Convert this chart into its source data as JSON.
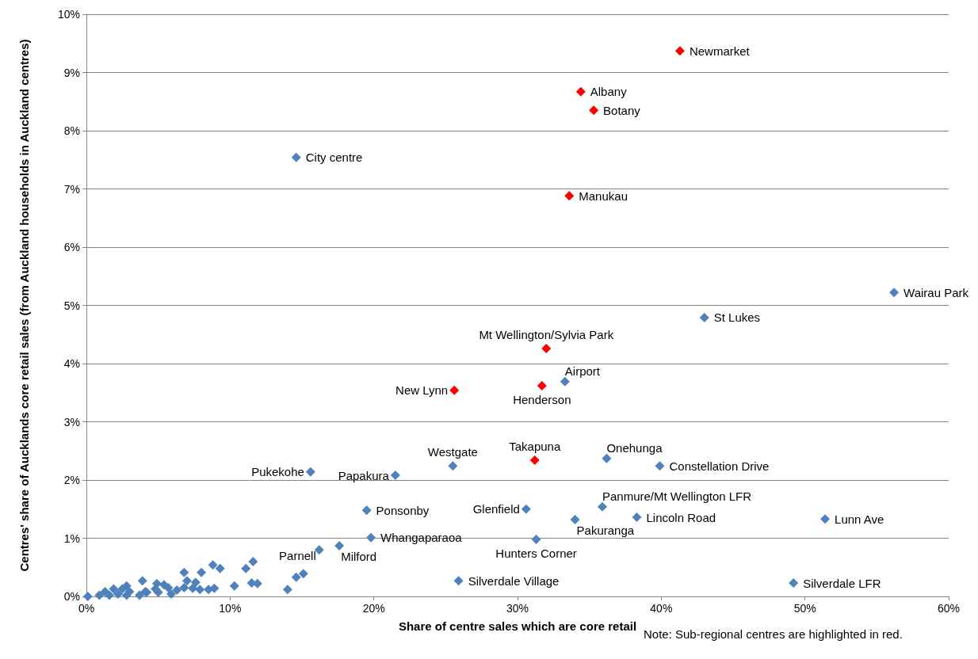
{
  "chart_data": {
    "type": "scatter",
    "xlabel": "Share of centre sales which are core retail",
    "ylabel": "Centres' share of Aucklands core retail sales (from Auckland households in Auckland centres)",
    "marker": "diamond",
    "grid": "y",
    "xlim": [
      0,
      60
    ],
    "xticks": [
      {
        "value": 0,
        "label": "0%"
      },
      {
        "value": 10,
        "label": "10%"
      },
      {
        "value": 20,
        "label": "20%"
      },
      {
        "value": 30,
        "label": "30%"
      },
      {
        "value": 40,
        "label": "40%"
      },
      {
        "value": 50,
        "label": "50%"
      },
      {
        "value": 60,
        "label": "60%"
      }
    ],
    "ylim": [
      0,
      10
    ],
    "yticks": [
      {
        "value": 0,
        "label": "0%"
      },
      {
        "value": 1,
        "label": "1%"
      },
      {
        "value": 2,
        "label": "2%"
      },
      {
        "value": 3,
        "label": "3%"
      },
      {
        "value": 4,
        "label": "4%"
      },
      {
        "value": 5,
        "label": "5%"
      },
      {
        "value": 6,
        "label": "6%"
      },
      {
        "value": 7,
        "label": "7%"
      },
      {
        "value": 8,
        "label": "8%"
      },
      {
        "value": 9,
        "label": "9%"
      },
      {
        "value": 10,
        "label": "10%"
      }
    ],
    "series": [
      {
        "color": "#4f81bd",
        "x": [
          0.1,
          0.9,
          1.3,
          1.6,
          1.9,
          2.2,
          2.5,
          2.8,
          2.8,
          3.0,
          3.7,
          3.9,
          4.1,
          4.2,
          4.9,
          5.0,
          4.8,
          5.4,
          5.7,
          5.9,
          6.3,
          6.8,
          6.8,
          7.0,
          7.4,
          7.6,
          7.9,
          8.0,
          8.5,
          8.8,
          8.9,
          9.3,
          10.3,
          11.1,
          11.5,
          11.6,
          11.9,
          14.0,
          14.6,
          15.1,
          16.2,
          17.6,
          19.5,
          19.8,
          25.9,
          15.6,
          21.5,
          25.5,
          36.2,
          39.9,
          30.6,
          35.9,
          34.0,
          38.3,
          51.4,
          31.3,
          49.2,
          33.3,
          43.0,
          56.2,
          14.6
        ],
        "values": [
          0.0,
          0.02,
          0.08,
          0.02,
          0.13,
          0.04,
          0.13,
          0.18,
          0.02,
          0.08,
          0.02,
          0.27,
          0.08,
          0.07,
          0.22,
          0.07,
          0.13,
          0.2,
          0.15,
          0.04,
          0.11,
          0.41,
          0.15,
          0.27,
          0.14,
          0.24,
          0.12,
          0.41,
          0.12,
          0.54,
          0.14,
          0.48,
          0.18,
          0.48,
          0.23,
          0.6,
          0.22,
          0.12,
          0.33,
          0.39,
          0.8,
          0.87,
          1.48,
          1.01,
          0.27,
          2.14,
          2.08,
          2.24,
          2.37,
          2.24,
          1.5,
          1.54,
          1.32,
          1.36,
          1.33,
          0.98,
          0.23,
          3.69,
          4.79,
          5.22,
          7.54
        ]
      },
      {
        "color": "#ff0000",
        "x": [
          41.3,
          34.4,
          35.3,
          33.6,
          32.0,
          25.6,
          31.7,
          31.2
        ],
        "values": [
          9.37,
          8.67,
          8.35,
          6.88,
          4.26,
          3.54,
          3.62,
          2.34
        ]
      }
    ],
    "annotations": [
      {
        "text": "Newmarket",
        "x": 41.3,
        "y": 9.37
      },
      {
        "text": "Albany",
        "x": 34.4,
        "y": 8.67
      },
      {
        "text": "Botany",
        "x": 35.3,
        "y": 8.35
      },
      {
        "text": "City centre",
        "x": 14.6,
        "y": 7.54
      },
      {
        "text": "Manukau",
        "x": 33.6,
        "y": 6.88
      },
      {
        "text": "Wairau Park",
        "x": 56.2,
        "y": 5.22
      },
      {
        "text": "St Lukes",
        "x": 43.0,
        "y": 4.79
      },
      {
        "text": "Mt Wellington/Sylvia Park",
        "x": 32.0,
        "y": 4.26
      },
      {
        "text": "New Lynn",
        "x": 25.6,
        "y": 3.54
      },
      {
        "text": "Airport",
        "x": 33.3,
        "y": 3.69
      },
      {
        "text": "Henderson",
        "x": 31.7,
        "y": 3.62
      },
      {
        "text": "Takapuna",
        "x": 31.2,
        "y": 2.34
      },
      {
        "text": "Onehunga",
        "x": 36.2,
        "y": 2.37
      },
      {
        "text": "Constellation Drive",
        "x": 39.9,
        "y": 2.24
      },
      {
        "text": "Westgate",
        "x": 25.5,
        "y": 2.24
      },
      {
        "text": "Pukekohe",
        "x": 15.6,
        "y": 2.14
      },
      {
        "text": "Papakura",
        "x": 21.5,
        "y": 2.08
      },
      {
        "text": "Panmure/Mt Wellington LFR",
        "x": 35.9,
        "y": 1.54
      },
      {
        "text": "Glenfield",
        "x": 30.6,
        "y": 1.5
      },
      {
        "text": "Ponsonby",
        "x": 19.5,
        "y": 1.48
      },
      {
        "text": "Pakuranga",
        "x": 34.0,
        "y": 1.32
      },
      {
        "text": "Lincoln Road",
        "x": 38.3,
        "y": 1.36
      },
      {
        "text": "Lunn Ave",
        "x": 51.4,
        "y": 1.33
      },
      {
        "text": "Whangaparaoa",
        "x": 19.8,
        "y": 1.01
      },
      {
        "text": "Hunters Corner",
        "x": 31.3,
        "y": 0.98
      },
      {
        "text": "Parnell",
        "x": 16.2,
        "y": 0.8
      },
      {
        "text": "Milford",
        "x": 17.6,
        "y": 0.87
      },
      {
        "text": "Silverdale Village",
        "x": 25.9,
        "y": 0.27
      },
      {
        "text": "Silverdale LFR",
        "x": 49.2,
        "y": 0.23
      },
      "Note: Sub-regional centres are highlighted in red."
    ]
  }
}
